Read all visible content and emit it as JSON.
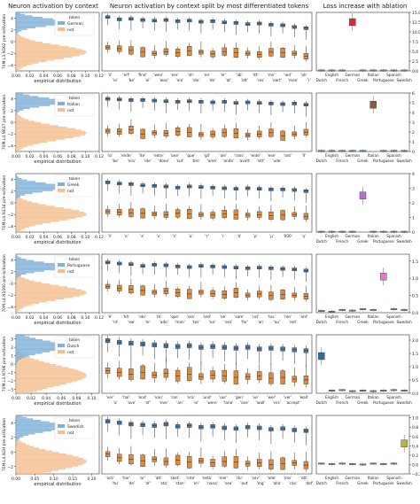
{
  "headers": {
    "left": "Neuron activation by context",
    "middle": "Neuron activation by context split by most differentiated tokens",
    "right": "Loss increase with ablation"
  },
  "xlabel_hist": "empirical distribution",
  "ylabel_loss": "sequence loss increase (%)",
  "legend_title": "token",
  "not_label": "not",
  "languages": [
    "Dutch",
    "English",
    "French",
    "German",
    "Greek",
    "Italian",
    "Portuguese",
    "Spanish",
    "Swedish"
  ],
  "colors": {
    "blue": "#4a7ca8",
    "orange": "#e08a3c",
    "hist_blue": "#7fb0d8",
    "hist_orange": "#f5be8e",
    "German": "#c8313a",
    "Italian": "#8b5a44",
    "Greek": "#b86fd0",
    "Portuguese": "#e878c4",
    "Dutch": "#2f6c9e",
    "Swedish": "#b7b43a"
  },
  "chart_data": [
    {
      "type": "histogram+boxplot+boxplot",
      "ylabel": "70M.L3.N362 pre-activation",
      "language": "German",
      "hist_xticks": [
        "0.00",
        "0.02",
        "0.04",
        "0.06",
        "0.08",
        "0.10",
        "0.12"
      ],
      "hist_xlim": [
        0,
        0.12
      ],
      "hist_yticks": [
        "4",
        "2",
        "0",
        "−2",
        "−4"
      ],
      "ylim": [
        -5,
        5
      ],
      "tokens_top": [
        "'z'",
        "'erf'",
        "'find'",
        "'wen'",
        "'ere'",
        "'sh'",
        "'en'",
        "'er'",
        "'ab'",
        "'itt'",
        "'mir'",
        "'ied'",
        "'ah'"
      ],
      "tokens_bottom": [
        "'ie'",
        "'be'",
        "'ei'",
        "'was'",
        "'ein'",
        "'die'",
        "'de'",
        "'at'",
        "'ott'",
        "'res'",
        "'eart'",
        "'man'",
        "'r'"
      ],
      "in_values": [
        4.2,
        3.8,
        3.9,
        3.7,
        3.6,
        3.7,
        3.5,
        3.6,
        3.4,
        3.5,
        3.3,
        3.2,
        3.0,
        3.1,
        2.9,
        2.8,
        2.5,
        2.3
      ],
      "out_values": [
        -1.0,
        -1.2,
        -1.5,
        -1.8,
        -2.0,
        -1.7,
        -1.9,
        -1.6,
        -1.8,
        -2.1,
        -1.7,
        -1.9,
        -2.0,
        -2.2,
        -1.8,
        -1.9,
        -2.0,
        -2.5
      ],
      "loss_yticks": [
        "0.0",
        "2.5",
        "5.0",
        "7.5",
        "10.0",
        "12.5",
        "15.0"
      ],
      "loss_ylim": [
        0,
        15
      ],
      "loss_values": [
        0.1,
        0.1,
        0.1,
        12.5,
        0.1,
        0.1,
        0.1,
        0.1,
        0.1
      ]
    },
    {
      "type": "histogram+boxplot+boxplot",
      "ylabel": "70M.L4.N617 pre-activation",
      "language": "Italian",
      "hist_xticks": [
        "0.00",
        "0.02",
        "0.04",
        "0.06",
        "0.08",
        "0.10",
        "0.12"
      ],
      "hist_xlim": [
        0,
        0.12
      ],
      "hist_yticks": [
        "4",
        "2",
        "0",
        "−2",
        "−4"
      ],
      "ylim": [
        -5,
        5
      ],
      "tokens_top": [
        "'lo'",
        "'ende'",
        "'ite'",
        "'ente'",
        "'one'",
        "'que'",
        "'gil'",
        "'ole'",
        "'rans'",
        "'ente'",
        "'ese'",
        "'ont'",
        "'ll'"
      ],
      "tokens_bottom": [
        "'be'",
        "'era'",
        "'ide'",
        "'done'",
        "'sut'",
        "'bre'",
        "'aren'",
        "'anda'",
        "'avolt'",
        "'istt'",
        "'ude'"
      ],
      "in_values": [
        4.0,
        3.9,
        3.8,
        3.8,
        3.7,
        3.6,
        3.5,
        3.6,
        3.5,
        3.4,
        3.5,
        3.3,
        3.4,
        3.3,
        3.2,
        3.1,
        3.2,
        3.0
      ],
      "out_values": [
        -1.5,
        -1.6,
        -1.3,
        -2.0,
        -1.8,
        -1.9,
        -1.6,
        -1.7,
        -2.1,
        -2.0,
        -1.8,
        -1.9,
        -2.2,
        -2.0,
        -1.8,
        -2.3,
        -2.0,
        -1.7
      ],
      "loss_yticks": [
        "0",
        "1",
        "2",
        "3",
        "4",
        "5",
        "6"
      ],
      "loss_ylim": [
        0,
        6
      ],
      "loss_values": [
        0.05,
        0.05,
        0.05,
        0.05,
        0.05,
        4.8,
        0.05,
        0.05,
        0.05
      ]
    },
    {
      "type": "histogram+boxplot+boxplot",
      "ylabel": "70M.L4.N134 pre-activation",
      "language": "Greek",
      "hist_xticks": [
        "0.00",
        "0.02",
        "0.04",
        "0.06",
        "0.08",
        "0.10",
        "0.12"
      ],
      "hist_xlim": [
        0,
        0.12
      ],
      "hist_yticks": [
        "4",
        "2",
        "0",
        "−2",
        "−4"
      ],
      "ylim": [
        -5,
        5
      ],
      "tokens_top": [
        "'λ'",
        "'ο'",
        "'κ'",
        "'ν'",
        "'ε'",
        "'α'",
        "'τ'",
        "'ι'",
        "'σ'",
        "'ρ'",
        "'μ'",
        "'000'",
        "'η'"
      ],
      "tokens_bottom": [],
      "in_values": [
        3.5,
        3.3,
        3.2,
        3.0,
        2.9,
        2.8,
        2.6,
        2.8,
        2.7,
        2.6,
        2.5,
        2.4,
        2.5,
        2.4,
        2.3,
        2.3,
        2.2,
        2.0
      ],
      "out_values": [
        -1.5,
        -1.6,
        -1.7,
        -1.8,
        -1.9,
        -2.0,
        -1.8,
        -1.9,
        -2.0,
        -2.1,
        -1.9,
        -2.0,
        -2.1,
        -2.0,
        -2.2,
        -2.1,
        -2.0,
        -2.3
      ],
      "loss_yticks": [
        "0",
        "1",
        "2",
        "3",
        "4"
      ],
      "loss_ylim": [
        0,
        4
      ],
      "loss_values": [
        0.02,
        0.02,
        0.02,
        0.02,
        2.5,
        0.02,
        0.02,
        0.02,
        0.02
      ]
    },
    {
      "type": "histogram+boxplot+boxplot",
      "ylabel": "70M.L4.N1060 pre-activation",
      "language": "Portuguese",
      "hist_xticks": [
        "0.00",
        "0.02",
        "0.04",
        "0.06",
        "0.08",
        "0.10",
        "0.12"
      ],
      "hist_xlim": [
        0,
        0.12
      ],
      "hist_yticks": [
        "4",
        "2",
        "0",
        "−2",
        "−4"
      ],
      "ylim": [
        -5,
        5
      ],
      "tokens_top": [
        "'ê'",
        "'hã'",
        "'ido'",
        "'rã'",
        "'que'",
        "'ssa'",
        "'sed'",
        "'on'",
        "'sam'",
        "'rot'",
        "'tos'",
        "'ren'",
        "'ant'"
      ],
      "tokens_bottom": [
        "'nt'",
        "'ew'",
        "'lo'",
        "'ado'",
        "'man'",
        "'tes'",
        "'ea'",
        "'ent'",
        "'for'",
        "'an'",
        "'au'",
        "'ent'"
      ],
      "in_values": [
        3.6,
        3.4,
        3.3,
        3.0,
        3.2,
        3.1,
        2.9,
        2.8,
        3.0,
        2.9,
        2.8,
        2.7,
        2.6,
        2.7,
        2.6,
        2.5,
        2.4,
        2.2
      ],
      "out_values": [
        -0.5,
        -0.8,
        -1.0,
        -1.2,
        -1.5,
        -1.3,
        -1.6,
        -1.8,
        -1.5,
        -1.7,
        -1.9,
        -1.6,
        -2.0,
        -1.8,
        -2.1,
        -1.9,
        -2.0,
        -2.2
      ],
      "loss_yticks": [
        "0.0",
        "0.5",
        "1.0",
        "1.5"
      ],
      "loss_ylim": [
        0,
        1.7
      ],
      "loss_values": [
        0.05,
        0.03,
        0.08,
        0.06,
        0.1,
        0.08,
        1.05,
        0.1,
        0.08
      ]
    },
    {
      "type": "histogram+boxplot+boxplot",
      "ylabel": "70M.L3.N766 pre-activation",
      "language": "Dutch",
      "hist_xticks": [
        "0.00",
        "0.02",
        "0.04",
        "0.06",
        "0.08",
        "0.10"
      ],
      "hist_xlim": [
        0,
        0.11
      ],
      "hist_yticks": [
        "3",
        "2",
        "1",
        "0",
        "−1",
        "−2",
        "−3"
      ],
      "ylim": [
        -3.5,
        3.5
      ],
      "tokens_top": [
        "'ver'",
        "'hal'",
        "'ond'",
        "'van'",
        "'ran'",
        "'vra'",
        "'und'",
        "'oor'",
        "'gen'",
        "'ve'",
        "'wer'",
        "'ver'",
        "'wall'"
      ],
      "tokens_bottom": [
        "'a'",
        "'ave'",
        "'of'",
        "'eve'",
        "'an'",
        "'ie'",
        "'were'",
        "'lane'",
        "'ave'",
        "'wall'",
        "'ers'",
        "'accept'"
      ],
      "in_values": [
        2.8,
        2.6,
        2.5,
        2.4,
        2.3,
        2.2,
        2.1,
        2.2,
        2.0,
        2.1,
        2.0,
        1.9,
        2.0,
        1.8,
        1.9,
        1.8,
        1.7,
        1.6
      ],
      "out_values": [
        -0.8,
        -1.0,
        -1.2,
        -1.0,
        -1.3,
        -1.1,
        -1.4,
        -1.2,
        -1.5,
        -1.3,
        -1.4,
        -1.6,
        -1.5,
        -1.4,
        -1.7,
        -1.6,
        -1.8,
        -1.9
      ],
      "loss_yticks": [
        "0.0",
        "0.5",
        "1.0",
        "1.5",
        "2.0"
      ],
      "loss_ylim": [
        0,
        2.2
      ],
      "loss_values": [
        1.4,
        0.1,
        0.12,
        0.08,
        0.1,
        0.08,
        0.1,
        0.12,
        0.1
      ]
    },
    {
      "type": "histogram+boxplot+boxplot",
      "ylabel": "70M.L4.N2H pre-activation",
      "language": "Swedish",
      "hist_xticks": [
        "0.00",
        "0.05",
        "0.10",
        "0.15",
        "0.20"
      ],
      "hist_xlim": [
        0,
        0.22
      ],
      "hist_yticks": [
        "4",
        "2",
        "0",
        "−2"
      ],
      "ylim": [
        -3,
        5
      ],
      "tokens_top": [
        "'ock'",
        "'har'",
        "'ar'",
        "'att'",
        "'sket'",
        "'inte'",
        "'ekta'",
        "'mer'",
        "'du'",
        "'sov'",
        "'ade'",
        "'ons'",
        "'ett'"
      ],
      "tokens_bottom": [
        "'hu'",
        "'de'",
        "'af'",
        "'sta'",
        "'stan'",
        "'nn'",
        "'nana'",
        "'ose'",
        "'out'",
        "'mg'",
        "'alla'",
        "'cks'",
        "'def'"
      ],
      "in_values": [
        4.2,
        4.0,
        3.8,
        3.7,
        3.6,
        3.8,
        3.5,
        3.6,
        3.4,
        3.5,
        3.3,
        3.2,
        3.4,
        3.3,
        3.1,
        3.2,
        3.0,
        2.9
      ],
      "out_values": [
        -0.3,
        -0.8,
        -1.0,
        -1.2,
        -1.0,
        -1.3,
        -1.1,
        -1.4,
        -1.2,
        -1.5,
        -1.3,
        -1.4,
        -1.6,
        -1.5,
        -1.7,
        -1.6,
        -1.5,
        -1.8
      ],
      "loss_yticks": [
        "−0.2",
        "0.0",
        "0.2",
        "0.4",
        "0.6",
        "0.8",
        "1.0"
      ],
      "loss_ylim": [
        -0.2,
        1.05
      ],
      "loss_values": [
        0.02,
        0.01,
        0.02,
        0.01,
        0.0,
        0.02,
        0.01,
        0.02,
        0.45
      ]
    }
  ]
}
